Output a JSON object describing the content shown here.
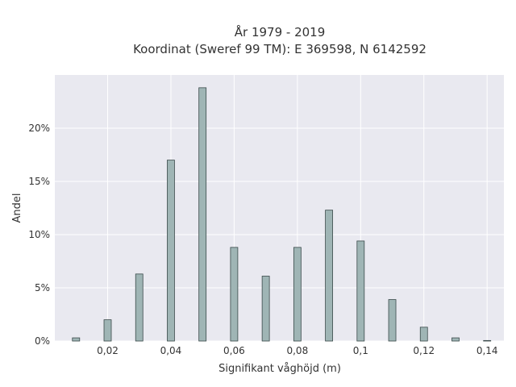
{
  "chart_data": {
    "type": "bar",
    "title_line1": "År 1979 - 2019",
    "title_line2": "Koordinat (Sweref 99 TM): E 369598, N 6142592",
    "xlabel": "Signifikant våghöjd (m)",
    "ylabel": "Andel",
    "x": [
      0.01,
      0.02,
      0.03,
      0.04,
      0.05,
      0.06,
      0.07,
      0.08,
      0.09,
      0.1,
      0.11,
      0.12,
      0.13,
      0.14
    ],
    "values": [
      0.3,
      2.0,
      6.3,
      17.0,
      23.8,
      8.8,
      6.1,
      8.8,
      12.3,
      9.4,
      3.9,
      1.3,
      0.3,
      0.05
    ],
    "x_ticks": [
      0.02,
      0.04,
      0.06,
      0.08,
      0.1,
      0.12,
      0.14
    ],
    "x_tick_labels": [
      "0,02",
      "0,04",
      "0,06",
      "0,08",
      "0,1",
      "0,12",
      "0,14"
    ],
    "y_ticks": [
      0,
      5,
      10,
      15,
      20
    ],
    "y_tick_labels": [
      "0%",
      "5%",
      "10%",
      "15%",
      "20%"
    ],
    "xlim": [
      0.0033,
      0.1453
    ],
    "ylim": [
      0,
      25
    ],
    "grid": true,
    "colors": {
      "plot_bg": "#e9e9f0",
      "grid": "#ffffff",
      "bar_fill": "#9fb5b5",
      "bar_edge": "#3a4a4a"
    }
  }
}
